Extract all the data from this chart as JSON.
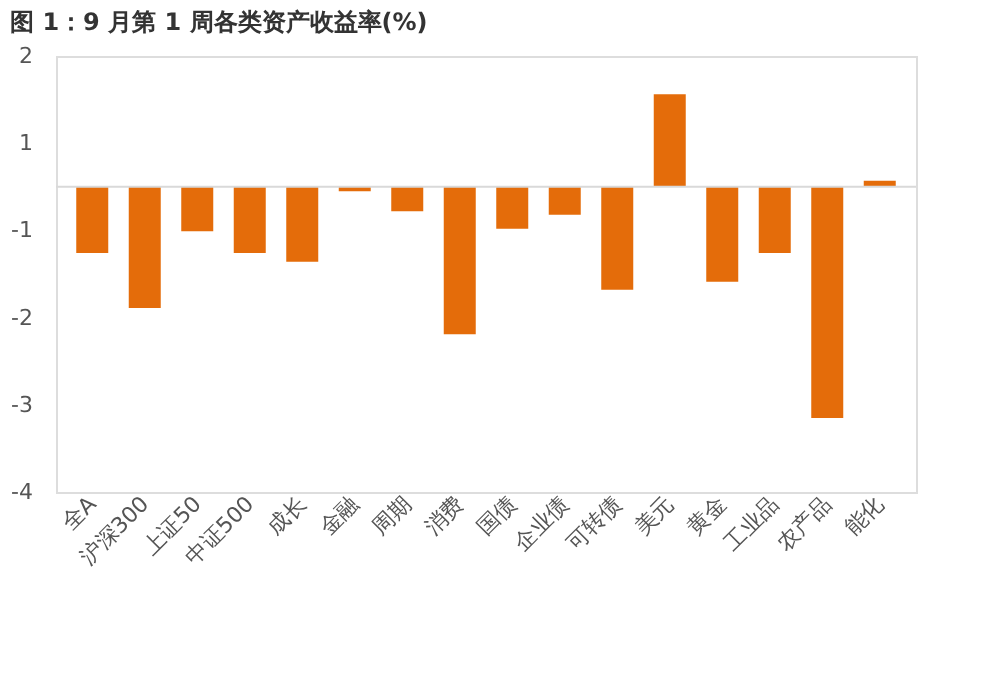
{
  "chart_data": {
    "type": "bar",
    "title": "图 1：9 月第 1 周各类资产收益率(%)",
    "categories": [
      "全A",
      "沪深300",
      "上证50",
      "中证500",
      "成长",
      "金融",
      "周期",
      "消费",
      "国债",
      "企业债",
      "可转债",
      "美元",
      "黄金",
      "工业品",
      "农产品",
      "能化"
    ],
    "values": [
      -0.76,
      -1.39,
      -0.51,
      -0.76,
      -0.86,
      -0.05,
      -0.28,
      -1.69,
      -0.48,
      -0.32,
      -1.18,
      1.06,
      -1.09,
      -0.76,
      -2.65,
      0.07
    ],
    "color": "#e46c0a",
    "ylim": [
      -3.5,
      1.5
    ],
    "yticks": [
      {
        "value": 1.5,
        "label": "2"
      },
      {
        "value": 0.5,
        "label": "1"
      },
      {
        "value": -0.5,
        "label": "-1"
      },
      {
        "value": -1.5,
        "label": "-2"
      },
      {
        "value": -2.5,
        "label": "-3"
      },
      {
        "value": -3.5,
        "label": "-4"
      }
    ],
    "ref_lines": [
      {
        "axis": "y",
        "value": 0,
        "label": null,
        "color": "#d9d9d9"
      }
    ],
    "grid": false
  }
}
